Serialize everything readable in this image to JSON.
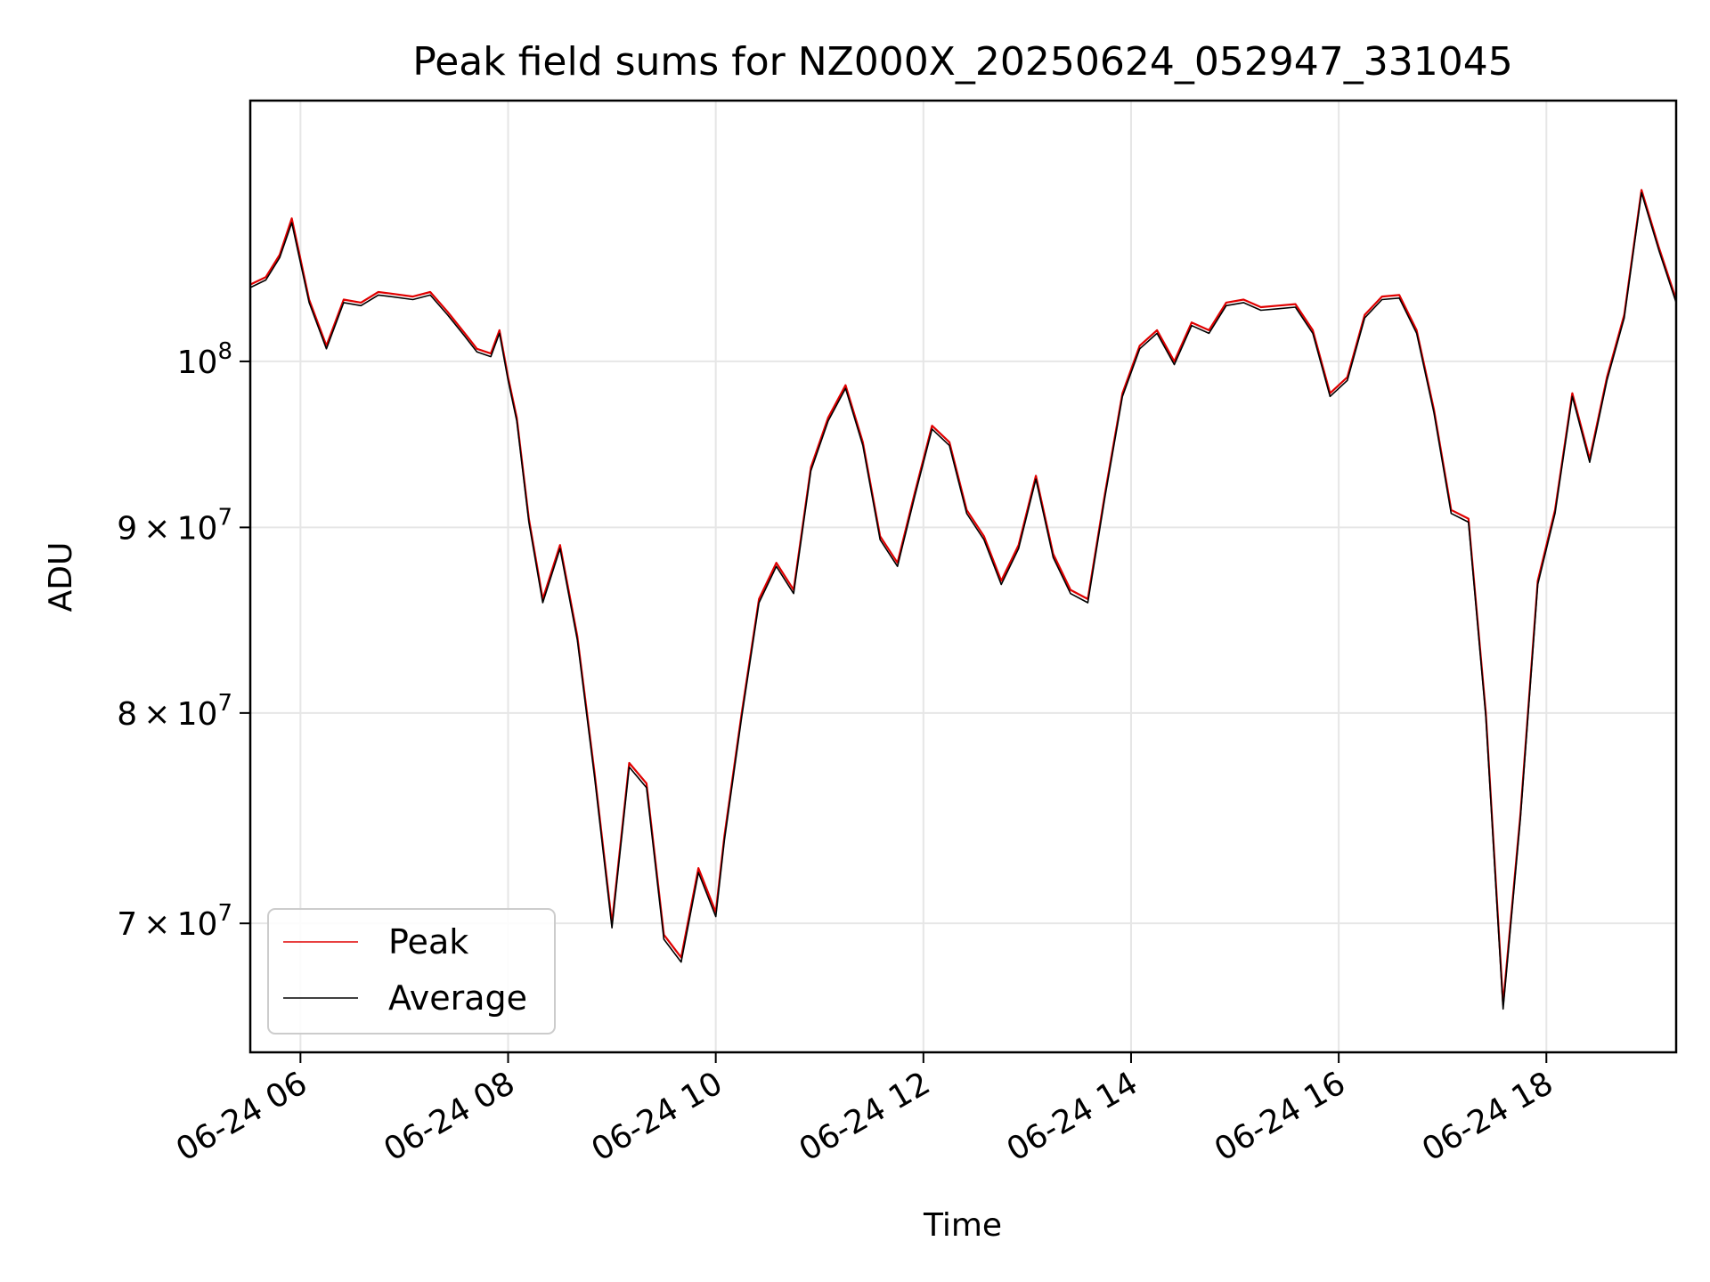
{
  "chart_data": {
    "type": "line",
    "title": "Peak field sums for NZ000X_20250624_052947_331045",
    "xlabel": "Time",
    "ylabel": "ADU",
    "yscale": "log",
    "xlim": [
      "2025-06-24T05:31",
      "2025-06-24T19:15"
    ],
    "ylim": [
      64500000,
      118000000
    ],
    "grid": true,
    "legend_position": "lower-left",
    "x_ticks": [
      "2025-06-24T06:00",
      "2025-06-24T08:00",
      "2025-06-24T10:00",
      "2025-06-24T12:00",
      "2025-06-24T14:00",
      "2025-06-24T16:00",
      "2025-06-24T18:00"
    ],
    "x_tick_labels": [
      "06-24 06",
      "06-24 08",
      "06-24 10",
      "06-24 12",
      "06-24 14",
      "06-24 16",
      "06-24 18"
    ],
    "y_ticks": [
      {
        "value": 70000000,
        "mantissa": "7",
        "times": "×",
        "base": "10",
        "exp": "7"
      },
      {
        "value": 80000000,
        "mantissa": "8",
        "times": "×",
        "base": "10",
        "exp": "7"
      },
      {
        "value": 90000000,
        "mantissa": "9",
        "times": "×",
        "base": "10",
        "exp": "7"
      },
      {
        "value": 100000000,
        "mantissa": "",
        "times": "",
        "base": "10",
        "exp": "8"
      }
    ],
    "x": [
      "05:31",
      "05:40",
      "05:48",
      "05:55",
      "06:05",
      "06:15",
      "06:25",
      "06:35",
      "06:45",
      "06:52",
      "07:05",
      "07:15",
      "07:25",
      "07:35",
      "07:42",
      "07:50",
      "07:55",
      "08:00",
      "08:05",
      "08:12",
      "08:20",
      "08:30",
      "08:40",
      "08:50",
      "09:00",
      "09:10",
      "09:20",
      "09:30",
      "09:40",
      "09:50",
      "10:00",
      "10:05",
      "10:15",
      "10:25",
      "10:35",
      "10:45",
      "10:55",
      "11:05",
      "11:15",
      "11:25",
      "11:35",
      "11:45",
      "11:55",
      "12:05",
      "12:15",
      "12:25",
      "12:35",
      "12:45",
      "12:55",
      "13:05",
      "13:15",
      "13:25",
      "13:35",
      "13:45",
      "13:55",
      "14:05",
      "14:15",
      "14:25",
      "14:35",
      "14:45",
      "14:55",
      "15:05",
      "15:15",
      "15:25",
      "15:35",
      "15:45",
      "15:55",
      "16:05",
      "16:15",
      "16:25",
      "16:35",
      "16:45",
      "16:55",
      "17:05",
      "17:15",
      "17:25",
      "17:35",
      "17:45",
      "17:55",
      "18:05",
      "18:15",
      "18:25",
      "18:35",
      "18:45",
      "18:55",
      "19:05",
      "19:15"
    ],
    "series": [
      {
        "name": "Peak",
        "color": "#e00000",
        "values": [
          105000000,
          105500000,
          107000000,
          109500000,
          104000000,
          101000000,
          104000000,
          103800000,
          104500000,
          104400000,
          104200000,
          104500000,
          103200000,
          101800000,
          100800000,
          100500000,
          102000000,
          99000000,
          96500000,
          90500000,
          86000000,
          89000000,
          84000000,
          77000000,
          70000000,
          77500000,
          76500000,
          69500000,
          68500000,
          72500000,
          70500000,
          74000000,
          80000000,
          86000000,
          88000000,
          86500000,
          93500000,
          96500000,
          98500000,
          95000000,
          89500000,
          88000000,
          92000000,
          96000000,
          95000000,
          91000000,
          89500000,
          87000000,
          89000000,
          93000000,
          88500000,
          86500000,
          86000000,
          92000000,
          98000000,
          101000000,
          102000000,
          100000000,
          102500000,
          102000000,
          103800000,
          104000000,
          103500000,
          103600000,
          103700000,
          102000000,
          98000000,
          99000000,
          103000000,
          104200000,
          104300000,
          102000000,
          97000000,
          91000000,
          90500000,
          80000000,
          66500000,
          75000000,
          87000000,
          91000000,
          98000000,
          94000000,
          99000000,
          103000000,
          111500000,
          107500000,
          104000000
        ]
      },
      {
        "name": "Average",
        "color": "#000000",
        "values": [
          104800000,
          105300000,
          106800000,
          109200000,
          103800000,
          100800000,
          103800000,
          103600000,
          104300000,
          104200000,
          104000000,
          104300000,
          103000000,
          101600000,
          100600000,
          100300000,
          101800000,
          98800000,
          96300000,
          90300000,
          85800000,
          88800000,
          83800000,
          76800000,
          69800000,
          77300000,
          76300000,
          69300000,
          68300000,
          72300000,
          70300000,
          73800000,
          79800000,
          85800000,
          87800000,
          86300000,
          93300000,
          96300000,
          98300000,
          94800000,
          89300000,
          87800000,
          91800000,
          95800000,
          94800000,
          90800000,
          89300000,
          86800000,
          88800000,
          92800000,
          88300000,
          86300000,
          85800000,
          91800000,
          97800000,
          100800000,
          101800000,
          99800000,
          102300000,
          101800000,
          103600000,
          103800000,
          103300000,
          103400000,
          103500000,
          101800000,
          97800000,
          98800000,
          102800000,
          104000000,
          104100000,
          101800000,
          96800000,
          90800000,
          90300000,
          79800000,
          66300000,
          74800000,
          86800000,
          90800000,
          97800000,
          93800000,
          98800000,
          102800000,
          111300000,
          107300000,
          103800000
        ]
      }
    ]
  }
}
